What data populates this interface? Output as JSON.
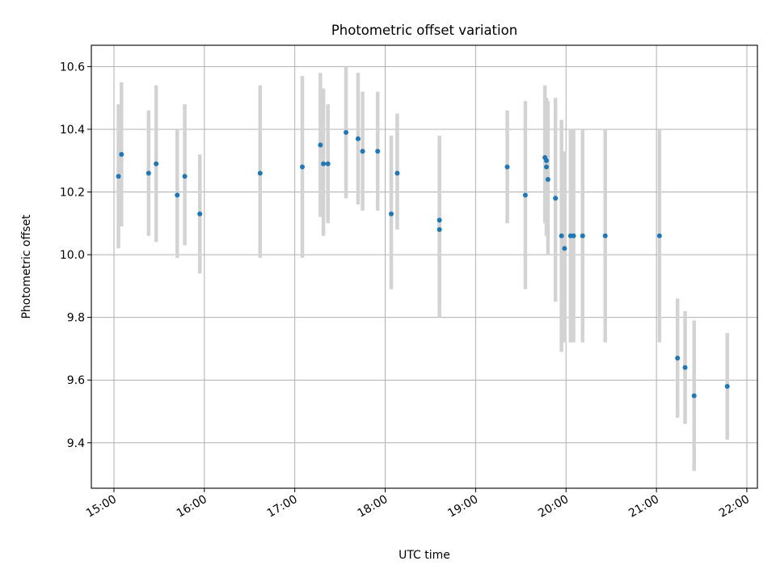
{
  "chart_data": {
    "type": "scatter",
    "title": "Photometric offset variation",
    "xlabel": "UTC time",
    "ylabel": "Photometric offset",
    "x_unit": "UTC HH:MM",
    "xlim": [
      "14:45",
      "22:07"
    ],
    "ylim": [
      9.255,
      10.668
    ],
    "xticks": [
      "15:00",
      "16:00",
      "17:00",
      "18:00",
      "19:00",
      "20:00",
      "21:00",
      "22:00"
    ],
    "yticks": [
      "9.4",
      "9.6",
      "9.8",
      "10.0",
      "10.2",
      "10.4",
      "10.6"
    ],
    "grid": true,
    "error_bar_color": "#d3d3d3",
    "marker_color": "#1f77b4",
    "points": [
      {
        "t": "15:03",
        "y": 10.25,
        "err": [
          10.02,
          10.48
        ]
      },
      {
        "t": "15:05",
        "y": 10.32,
        "err": [
          10.09,
          10.55
        ]
      },
      {
        "t": "15:23",
        "y": 10.26,
        "err": [
          10.06,
          10.46
        ]
      },
      {
        "t": "15:28",
        "y": 10.29,
        "err": [
          10.04,
          10.54
        ]
      },
      {
        "t": "15:42",
        "y": 10.19,
        "err": [
          9.99,
          10.4
        ]
      },
      {
        "t": "15:47",
        "y": 10.25,
        "err": [
          10.03,
          10.48
        ]
      },
      {
        "t": "15:57",
        "y": 10.13,
        "err": [
          9.94,
          10.32
        ]
      },
      {
        "t": "16:37",
        "y": 10.26,
        "err": [
          9.99,
          10.54
        ]
      },
      {
        "t": "17:05",
        "y": 10.28,
        "err": [
          9.99,
          10.57
        ]
      },
      {
        "t": "17:17",
        "y": 10.35,
        "err": [
          10.12,
          10.58
        ]
      },
      {
        "t": "17:19",
        "y": 10.29,
        "err": [
          10.06,
          10.53
        ]
      },
      {
        "t": "17:22",
        "y": 10.29,
        "err": [
          10.1,
          10.48
        ]
      },
      {
        "t": "17:34",
        "y": 10.39,
        "err": [
          10.18,
          10.6
        ]
      },
      {
        "t": "17:42",
        "y": 10.37,
        "err": [
          10.16,
          10.58
        ]
      },
      {
        "t": "17:45",
        "y": 10.33,
        "err": [
          10.14,
          10.52
        ]
      },
      {
        "t": "17:55",
        "y": 10.33,
        "err": [
          10.14,
          10.52
        ]
      },
      {
        "t": "18:04",
        "y": 10.13,
        "err": [
          9.89,
          10.38
        ]
      },
      {
        "t": "18:08",
        "y": 10.26,
        "err": [
          10.08,
          10.45
        ]
      },
      {
        "t": "18:36",
        "y": 10.11,
        "err": [
          9.84,
          10.38
        ]
      },
      {
        "t": "18:36",
        "y": 10.08,
        "err": [
          9.8,
          10.36
        ]
      },
      {
        "t": "19:21",
        "y": 10.28,
        "err": [
          10.1,
          10.46
        ]
      },
      {
        "t": "19:33",
        "y": 10.19,
        "err": [
          9.89,
          10.49
        ]
      },
      {
        "t": "19:46",
        "y": 10.31,
        "err": [
          10.1,
          10.54
        ]
      },
      {
        "t": "19:47",
        "y": 10.3,
        "err": [
          10.12,
          10.48
        ]
      },
      {
        "t": "19:47",
        "y": 10.28,
        "err": [
          10.06,
          10.5
        ]
      },
      {
        "t": "19:48",
        "y": 10.24,
        "err": [
          10.0,
          10.49
        ]
      },
      {
        "t": "19:53",
        "y": 10.18,
        "err": [
          9.85,
          10.5
        ]
      },
      {
        "t": "19:57",
        "y": 10.06,
        "err": [
          9.69,
          10.43
        ]
      },
      {
        "t": "19:59",
        "y": 10.02,
        "err": [
          9.72,
          10.33
        ]
      },
      {
        "t": "20:03",
        "y": 10.06,
        "err": [
          9.72,
          10.4
        ]
      },
      {
        "t": "20:05",
        "y": 10.06,
        "err": [
          9.72,
          10.4
        ]
      },
      {
        "t": "20:11",
        "y": 10.06,
        "err": [
          9.72,
          10.4
        ]
      },
      {
        "t": "20:26",
        "y": 10.06,
        "err": [
          9.72,
          10.4
        ]
      },
      {
        "t": "21:02",
        "y": 10.06,
        "err": [
          9.72,
          10.4
        ]
      },
      {
        "t": "21:14",
        "y": 9.67,
        "err": [
          9.48,
          9.86
        ]
      },
      {
        "t": "21:19",
        "y": 9.64,
        "err": [
          9.46,
          9.82
        ]
      },
      {
        "t": "21:25",
        "y": 9.55,
        "err": [
          9.31,
          9.79
        ]
      },
      {
        "t": "21:47",
        "y": 9.58,
        "err": [
          9.41,
          9.75
        ]
      }
    ]
  }
}
